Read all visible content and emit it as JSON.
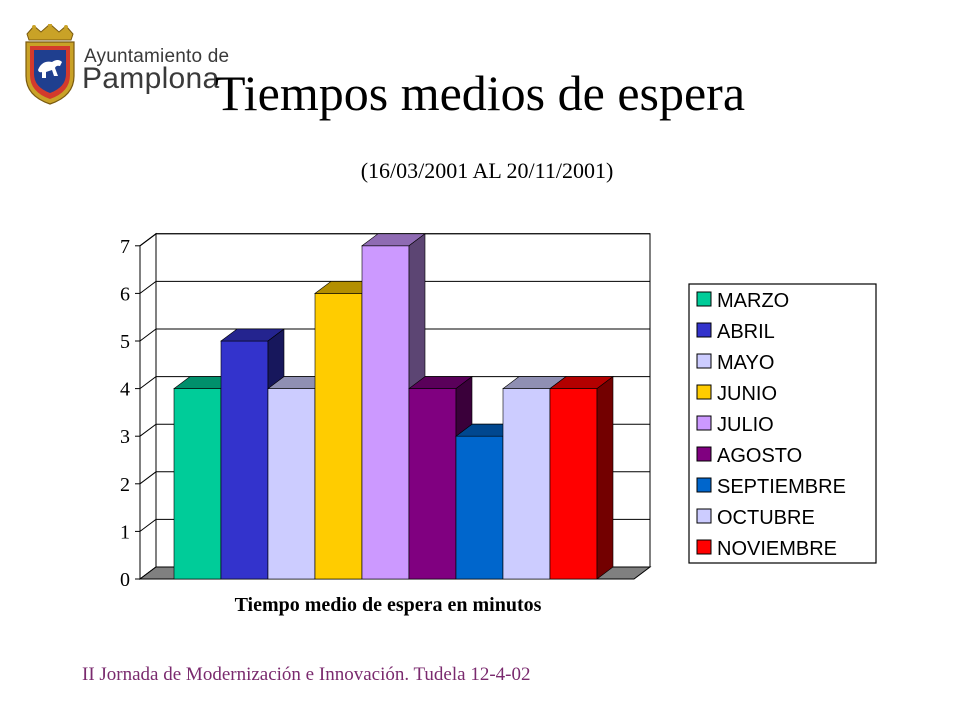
{
  "header": {
    "logo_line1": "Ayuntamiento de",
    "logo_line2": "Pamplona",
    "title": "Tiempos medios de espera",
    "subtitle": "(16/03/2001 AL 20/11/2001)"
  },
  "footer": {
    "text": "II Jornada de Modernización e Innovación.  Tudela 12-4-02"
  },
  "chart_data": {
    "type": "bar",
    "style": "3d-clustered",
    "title": "Tiempos medios de espera",
    "subtitle": "(16/03/2001 AL 20/11/2001)",
    "xlabel": "Tiempo medio de espera en minutos",
    "ylabel": "",
    "ylim": [
      0,
      7
    ],
    "yticks": [
      "0",
      "1",
      "2",
      "3",
      "4",
      "5",
      "6",
      "7"
    ],
    "grid": true,
    "legend_position": "right",
    "series": [
      {
        "name": "MARZO",
        "value": 4,
        "color": "#00CC99"
      },
      {
        "name": "ABRIL",
        "value": 5,
        "color": "#3333CC"
      },
      {
        "name": "MAYO",
        "value": 4,
        "color": "#CCCCFF"
      },
      {
        "name": "JUNIO",
        "value": 6,
        "color": "#FFCC00"
      },
      {
        "name": "JULIO",
        "value": 7,
        "color": "#CC99FF"
      },
      {
        "name": "AGOSTO",
        "value": 4,
        "color": "#800080"
      },
      {
        "name": "SEPTIEMBRE",
        "value": 3,
        "color": "#0066CC"
      },
      {
        "name": "OCTUBRE",
        "value": 4,
        "color": "#CCCCFF"
      },
      {
        "name": "NOVIEMBRE",
        "value": 4,
        "color": "#FF0000"
      }
    ]
  }
}
